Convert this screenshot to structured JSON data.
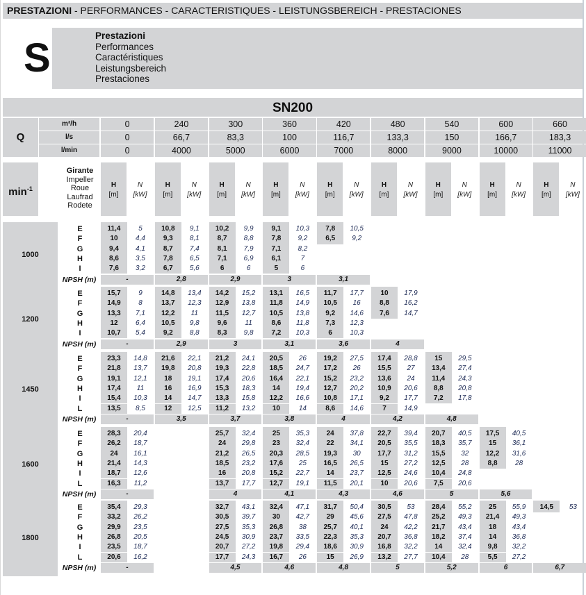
{
  "header": {
    "title_bold": "PRESTAZIONI",
    "title_rest": " - PERFORMANCES - CARACTERISTIQUES - LEISTUNGSBEREICH - PRESTACIONES"
  },
  "section": {
    "letter": "S",
    "labels": [
      "Prestazioni",
      "Performances",
      "Caractéristiques",
      "Leistungsbereich",
      "Prestaciones"
    ]
  },
  "model": "SN200",
  "flow": {
    "label": "Q",
    "rows": [
      {
        "unit": "m³/h",
        "values": [
          "0",
          "240",
          "300",
          "360",
          "420",
          "480",
          "540",
          "600",
          "660"
        ]
      },
      {
        "unit": "l/s",
        "values": [
          "0",
          "66,7",
          "83,3",
          "100",
          "116,7",
          "133,3",
          "150",
          "166,7",
          "183,3"
        ]
      },
      {
        "unit": "l/min",
        "values": [
          "0",
          "4000",
          "5000",
          "6000",
          "7000",
          "8000",
          "9000",
          "10000",
          "11000"
        ]
      }
    ]
  },
  "columns_header": {
    "speed_label": "min",
    "speed_sup": "-1",
    "impeller_labels": [
      "Girante",
      "Impeller",
      "Roue",
      "Laufrad",
      "Rodete"
    ],
    "h_label": "H",
    "h_unit": "[m]",
    "n_label": "N",
    "n_unit": "[kW]"
  },
  "npsh_label": "NPSH (m)",
  "blocks": [
    {
      "rpm": "1000",
      "rows": [
        {
          "imp": "E",
          "cells": [
            [
              "11,4",
              "5"
            ],
            [
              "10,8",
              "9,1"
            ],
            [
              "10,2",
              "9,9"
            ],
            [
              "9,1",
              "10,3"
            ],
            [
              "7,8",
              "10,5"
            ]
          ]
        },
        {
          "imp": "F",
          "cells": [
            [
              "10",
              "4,4"
            ],
            [
              "9,3",
              "8,1"
            ],
            [
              "8,7",
              "8,8"
            ],
            [
              "7,8",
              "9,2"
            ],
            [
              "6,5",
              "9,2"
            ]
          ]
        },
        {
          "imp": "G",
          "cells": [
            [
              "9,4",
              "4,1"
            ],
            [
              "8,7",
              "7,4"
            ],
            [
              "8,1",
              "7,9"
            ],
            [
              "7,1",
              "8,2"
            ]
          ]
        },
        {
          "imp": "H",
          "cells": [
            [
              "8,6",
              "3,5"
            ],
            [
              "7,8",
              "6,5"
            ],
            [
              "7,1",
              "6,9"
            ],
            [
              "6,1",
              "7"
            ]
          ]
        },
        {
          "imp": "I",
          "cells": [
            [
              "7,6",
              "3,2"
            ],
            [
              "6,7",
              "5,6"
            ],
            [
              "6",
              "6"
            ],
            [
              "5",
              "6"
            ]
          ]
        }
      ],
      "npsh": [
        "-",
        "2,8",
        "2,9",
        "3",
        "3,1"
      ]
    },
    {
      "rpm": "1200",
      "rows": [
        {
          "imp": "E",
          "cells": [
            [
              "15,7",
              "9"
            ],
            [
              "14,8",
              "13,4"
            ],
            [
              "14,2",
              "15,2"
            ],
            [
              "13,1",
              "16,5"
            ],
            [
              "11,7",
              "17,7"
            ],
            [
              "10",
              "17,9"
            ]
          ]
        },
        {
          "imp": "F",
          "cells": [
            [
              "14,9",
              "8"
            ],
            [
              "13,7",
              "12,3"
            ],
            [
              "12,9",
              "13,8"
            ],
            [
              "11,8",
              "14,9"
            ],
            [
              "10,5",
              "16"
            ],
            [
              "8,8",
              "16,2"
            ]
          ]
        },
        {
          "imp": "G",
          "cells": [
            [
              "13,3",
              "7,1"
            ],
            [
              "12,2",
              "11"
            ],
            [
              "11,5",
              "12,7"
            ],
            [
              "10,5",
              "13,8"
            ],
            [
              "9,2",
              "14,6"
            ],
            [
              "7,6",
              "14,7"
            ]
          ]
        },
        {
          "imp": "H",
          "cells": [
            [
              "12",
              "6,4"
            ],
            [
              "10,5",
              "9,8"
            ],
            [
              "9,6",
              "11"
            ],
            [
              "8,6",
              "11,8"
            ],
            [
              "7,3",
              "12,3"
            ]
          ]
        },
        {
          "imp": "I",
          "cells": [
            [
              "10,7",
              "5,4"
            ],
            [
              "9,2",
              "8,8"
            ],
            [
              "8,3",
              "9,8"
            ],
            [
              "7,2",
              "10,3"
            ],
            [
              "6",
              "10,3"
            ]
          ]
        }
      ],
      "npsh": [
        "-",
        "2,9",
        "3",
        "3,1",
        "3,6",
        "4"
      ]
    },
    {
      "rpm": "1450",
      "rows": [
        {
          "imp": "E",
          "cells": [
            [
              "23,3",
              "14,8"
            ],
            [
              "21,6",
              "22,1"
            ],
            [
              "21,2",
              "24,1"
            ],
            [
              "20,5",
              "26"
            ],
            [
              "19,2",
              "27,5"
            ],
            [
              "17,4",
              "28,8"
            ],
            [
              "15",
              "29,5"
            ]
          ]
        },
        {
          "imp": "F",
          "cells": [
            [
              "21,8",
              "13,7"
            ],
            [
              "19,8",
              "20,8"
            ],
            [
              "19,3",
              "22,8"
            ],
            [
              "18,5",
              "24,7"
            ],
            [
              "17,2",
              "26"
            ],
            [
              "15,5",
              "27"
            ],
            [
              "13,4",
              "27,4"
            ]
          ]
        },
        {
          "imp": "G",
          "cells": [
            [
              "19,1",
              "12,1"
            ],
            [
              "18",
              "19,1"
            ],
            [
              "17,4",
              "20,6"
            ],
            [
              "16,4",
              "22,1"
            ],
            [
              "15,2",
              "23,2"
            ],
            [
              "13,6",
              "24"
            ],
            [
              "11,4",
              "24,3"
            ]
          ]
        },
        {
          "imp": "H",
          "cells": [
            [
              "17,4",
              "11"
            ],
            [
              "16",
              "16,9"
            ],
            [
              "15,3",
              "18,3"
            ],
            [
              "14",
              "19,4"
            ],
            [
              "12,7",
              "20,2"
            ],
            [
              "10,9",
              "20,6"
            ],
            [
              "8,8",
              "20,8"
            ]
          ]
        },
        {
          "imp": "I",
          "cells": [
            [
              "15,4",
              "10,3"
            ],
            [
              "14",
              "14,7"
            ],
            [
              "13,3",
              "15,8"
            ],
            [
              "12,2",
              "16,6"
            ],
            [
              "10,8",
              "17,1"
            ],
            [
              "9,2",
              "17,7"
            ],
            [
              "7,2",
              "17,8"
            ]
          ]
        },
        {
          "imp": "L",
          "cells": [
            [
              "13,5",
              "8,5"
            ],
            [
              "12",
              "12,5"
            ],
            [
              "11,2",
              "13,2"
            ],
            [
              "10",
              "14"
            ],
            [
              "8,6",
              "14,6"
            ],
            [
              "7",
              "14,9"
            ]
          ]
        }
      ],
      "npsh": [
        "-",
        "3,5",
        "3,7",
        "3,8",
        "4",
        "4,2",
        "4,8"
      ]
    },
    {
      "rpm": "1600",
      "rows": [
        {
          "imp": "E",
          "cells": [
            [
              "28,3",
              "20,4"
            ],
            null,
            [
              "25,7",
              "32,4"
            ],
            [
              "25",
              "35,3"
            ],
            [
              "24",
              "37,8"
            ],
            [
              "22,7",
              "39,4"
            ],
            [
              "20,7",
              "40,5"
            ],
            [
              "17,5",
              "40,5"
            ]
          ]
        },
        {
          "imp": "F",
          "cells": [
            [
              "26,2",
              "18,7"
            ],
            null,
            [
              "24",
              "29,8"
            ],
            [
              "23",
              "32,4"
            ],
            [
              "22",
              "34,1"
            ],
            [
              "20,5",
              "35,5"
            ],
            [
              "18,3",
              "35,7"
            ],
            [
              "15",
              "36,1"
            ]
          ]
        },
        {
          "imp": "G",
          "cells": [
            [
              "24",
              "16,1"
            ],
            null,
            [
              "21,2",
              "26,5"
            ],
            [
              "20,3",
              "28,5"
            ],
            [
              "19,3",
              "30"
            ],
            [
              "17,7",
              "31,2"
            ],
            [
              "15,5",
              "32"
            ],
            [
              "12,2",
              "31,6"
            ]
          ]
        },
        {
          "imp": "H",
          "cells": [
            [
              "21,4",
              "14,3"
            ],
            null,
            [
              "18,5",
              "23,2"
            ],
            [
              "17,6",
              "25"
            ],
            [
              "16,5",
              "26,5"
            ],
            [
              "15",
              "27,2"
            ],
            [
              "12,5",
              "28"
            ],
            [
              "8,8",
              "28"
            ]
          ]
        },
        {
          "imp": "I",
          "cells": [
            [
              "18,7",
              "12,6"
            ],
            null,
            [
              "16",
              "20,8"
            ],
            [
              "15,2",
              "22,7"
            ],
            [
              "14",
              "23,7"
            ],
            [
              "12,5",
              "24,6"
            ],
            [
              "10,4",
              "24,8"
            ]
          ]
        },
        {
          "imp": "L",
          "cells": [
            [
              "16,3",
              "11,2"
            ],
            null,
            [
              "13,7",
              "17,7"
            ],
            [
              "12,7",
              "19,1"
            ],
            [
              "11,5",
              "20,1"
            ],
            [
              "10",
              "20,6"
            ],
            [
              "7,5",
              "20,6"
            ]
          ]
        }
      ],
      "npsh": [
        "-",
        null,
        "4",
        "4,1",
        "4,3",
        "4,6",
        "5",
        "5,6"
      ]
    },
    {
      "rpm": "1800",
      "rows": [
        {
          "imp": "E",
          "cells": [
            [
              "35,4",
              "29,3"
            ],
            null,
            [
              "32,7",
              "43,1"
            ],
            [
              "32,4",
              "47,1"
            ],
            [
              "31,7",
              "50,4"
            ],
            [
              "30,5",
              "53"
            ],
            [
              "28,4",
              "55,2"
            ],
            [
              "25",
              "55,9"
            ],
            [
              "14,5",
              "53"
            ]
          ]
        },
        {
          "imp": "F",
          "cells": [
            [
              "33,2",
              "26,2"
            ],
            null,
            [
              "30,5",
              "39,7"
            ],
            [
              "30",
              "42,7"
            ],
            [
              "29",
              "45,6"
            ],
            [
              "27,5",
              "47,8"
            ],
            [
              "25,2",
              "49,3"
            ],
            [
              "21,4",
              "49,3"
            ]
          ]
        },
        {
          "imp": "G",
          "cells": [
            [
              "29,9",
              "23,5"
            ],
            null,
            [
              "27,5",
              "35,3"
            ],
            [
              "26,8",
              "38"
            ],
            [
              "25,7",
              "40,1"
            ],
            [
              "24",
              "42,2"
            ],
            [
              "21,7",
              "43,4"
            ],
            [
              "18",
              "43,4"
            ]
          ]
        },
        {
          "imp": "H",
          "cells": [
            [
              "26,8",
              "20,5"
            ],
            null,
            [
              "24,5",
              "30,9"
            ],
            [
              "23,7",
              "33,5"
            ],
            [
              "22,3",
              "35,3"
            ],
            [
              "20,7",
              "36,8"
            ],
            [
              "18,2",
              "37,4"
            ],
            [
              "14",
              "36,8"
            ]
          ]
        },
        {
          "imp": "I",
          "cells": [
            [
              "23,5",
              "18,7"
            ],
            null,
            [
              "20,7",
              "27,2"
            ],
            [
              "19,8",
              "29,4"
            ],
            [
              "18,6",
              "30,9"
            ],
            [
              "16,8",
              "32,2"
            ],
            [
              "14",
              "32,4"
            ],
            [
              "9,8",
              "32,2"
            ]
          ]
        },
        {
          "imp": "L",
          "cells": [
            [
              "20,6",
              "16,2"
            ],
            null,
            [
              "17,7",
              "24,3"
            ],
            [
              "16,7",
              "26"
            ],
            [
              "15",
              "26,9"
            ],
            [
              "13,2",
              "27,7"
            ],
            [
              "10,4",
              "28"
            ],
            [
              "5,5",
              "27,2"
            ]
          ]
        }
      ],
      "npsh": [
        "-",
        null,
        "4,5",
        "4,6",
        "4,8",
        "5",
        "5,2",
        "6",
        "6,7"
      ]
    }
  ]
}
